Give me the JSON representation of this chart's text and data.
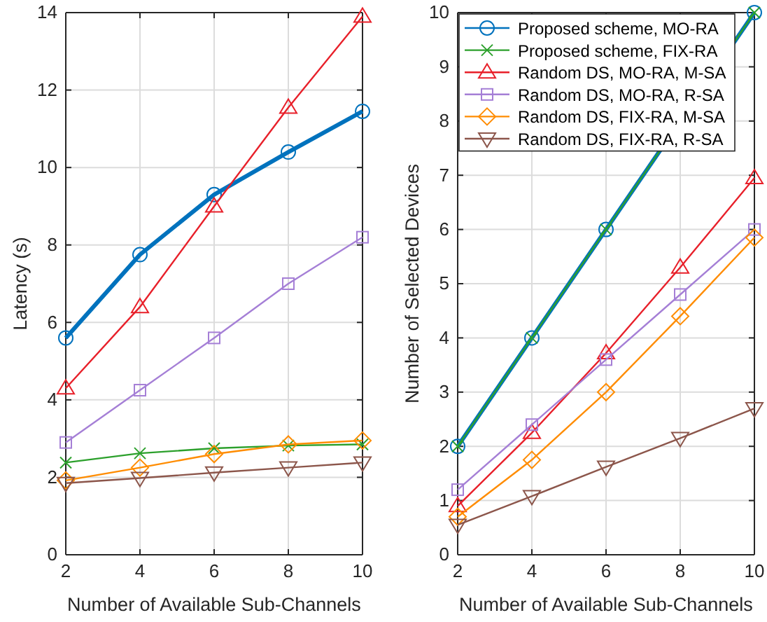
{
  "chart_data": [
    {
      "type": "line",
      "xlabel": "Number of Available Sub-Channels",
      "ylabel": "Latency (s)",
      "x": [
        2,
        4,
        6,
        8,
        10
      ],
      "xlim": [
        2,
        10
      ],
      "xticks": [
        2,
        4,
        6,
        8,
        10
      ],
      "ylim": [
        0,
        14
      ],
      "yticks": [
        0,
        2,
        4,
        6,
        8,
        10,
        12,
        14
      ],
      "grid": true,
      "legend": false,
      "series": [
        {
          "color": "#0072bd",
          "marker": "circle",
          "values": [
            5.6,
            7.75,
            9.3,
            10.4,
            11.45
          ]
        },
        {
          "color": "#2ca02c",
          "marker": "cross",
          "values": [
            2.38,
            2.62,
            2.75,
            2.82,
            2.85
          ]
        },
        {
          "color": "#e8202a",
          "marker": "triangle",
          "values": [
            4.3,
            6.4,
            9.0,
            11.55,
            13.9
          ]
        },
        {
          "color": "#a57fd6",
          "marker": "square",
          "values": [
            2.9,
            4.25,
            5.6,
            7.0,
            8.2
          ]
        },
        {
          "color": "#ff8c00",
          "marker": "diamond",
          "values": [
            1.92,
            2.25,
            2.6,
            2.85,
            2.95
          ]
        },
        {
          "color": "#8c564b",
          "marker": "triangle-down",
          "values": [
            1.85,
            1.98,
            2.12,
            2.25,
            2.38
          ]
        }
      ]
    },
    {
      "type": "line",
      "xlabel": "Number of Available Sub-Channels",
      "ylabel": "Number of Selected Devices",
      "x": [
        2,
        4,
        6,
        8,
        10
      ],
      "xlim": [
        2,
        10
      ],
      "xticks": [
        2,
        4,
        6,
        8,
        10
      ],
      "ylim": [
        0,
        10
      ],
      "yticks": [
        0,
        1,
        2,
        3,
        4,
        5,
        6,
        7,
        8,
        9,
        10
      ],
      "grid": true,
      "legend": "top left",
      "series": [
        {
          "name": "Proposed scheme, MO-RA",
          "color": "#0072bd",
          "marker": "circle",
          "values": [
            2,
            4,
            6,
            null,
            10
          ]
        },
        {
          "name": "Proposed scheme, FIX-RA",
          "color": "#2ca02c",
          "marker": "cross",
          "values": [
            2,
            4,
            6,
            null,
            10
          ]
        },
        {
          "name": "Random DS, MO-RA, M-SA",
          "color": "#e8202a",
          "marker": "triangle",
          "values": [
            0.9,
            2.25,
            3.72,
            5.3,
            6.95
          ]
        },
        {
          "name": "Random DS, MO-RA, R-SA",
          "color": "#a57fd6",
          "marker": "square",
          "values": [
            1.2,
            2.4,
            3.6,
            4.8,
            6.0
          ]
        },
        {
          "name": "Random DS, FIX-RA, M-SA",
          "color": "#ff8c00",
          "marker": "diamond",
          "values": [
            0.7,
            1.75,
            3.0,
            4.4,
            5.85
          ]
        },
        {
          "name": "Random DS, FIX-RA, R-SA",
          "color": "#8c564b",
          "marker": "triangle-down",
          "values": [
            0.55,
            1.08,
            1.62,
            2.15,
            2.7
          ]
        }
      ]
    }
  ]
}
